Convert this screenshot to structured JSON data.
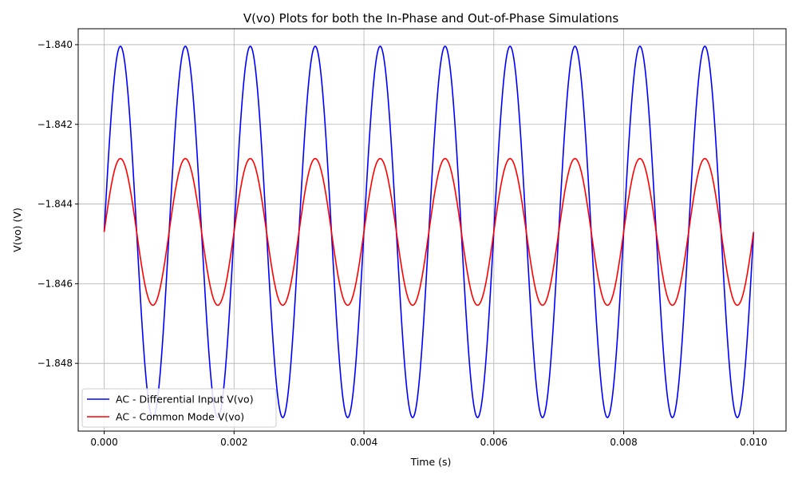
{
  "chart_data": {
    "type": "line",
    "title": "V(vo) Plots for both the In-Phase and Out-of-Phase Simulations",
    "xlabel": "Time (s)",
    "ylabel": "V(vo) (V)",
    "xlim": [
      -0.0004,
      0.0105
    ],
    "ylim": [
      -1.8497,
      -1.8396
    ],
    "xticks": [
      0.0,
      0.002,
      0.004,
      0.006,
      0.008,
      0.01
    ],
    "xtick_labels": [
      "0.000",
      "0.002",
      "0.004",
      "0.006",
      "0.008",
      "0.010"
    ],
    "yticks": [
      -1.848,
      -1.846,
      -1.844,
      -1.842,
      -1.84
    ],
    "ytick_labels": [
      "−1.848",
      "−1.846",
      "−1.844",
      "−1.842",
      "−1.840"
    ],
    "grid": true,
    "legend_position": "lower-left",
    "series": [
      {
        "name": "AC - Differential Input V(vo)",
        "color": "#0000ff",
        "waveform": "sine",
        "offset": -1.8447,
        "amplitude": 0.00466,
        "frequency_hz": 1000,
        "x_start": 0.0,
        "x_end": 0.01,
        "peaks": [
          {
            "x": 0.00025,
            "y": -1.84004
          },
          {
            "x": 0.00125,
            "y": -1.84004
          },
          {
            "x": 0.00225,
            "y": -1.84004
          },
          {
            "x": 0.00325,
            "y": -1.84004
          },
          {
            "x": 0.00425,
            "y": -1.84004
          },
          {
            "x": 0.00525,
            "y": -1.84004
          },
          {
            "x": 0.00625,
            "y": -1.84004
          },
          {
            "x": 0.00725,
            "y": -1.84004
          },
          {
            "x": 0.00825,
            "y": -1.84004
          },
          {
            "x": 0.00925,
            "y": -1.84004
          }
        ],
        "troughs": [
          {
            "x": 0.00075,
            "y": -1.84936
          },
          {
            "x": 0.00175,
            "y": -1.84936
          },
          {
            "x": 0.00275,
            "y": -1.84936
          },
          {
            "x": 0.00375,
            "y": -1.84936
          },
          {
            "x": 0.00475,
            "y": -1.84936
          },
          {
            "x": 0.00575,
            "y": -1.84936
          },
          {
            "x": 0.00675,
            "y": -1.84936
          },
          {
            "x": 0.00775,
            "y": -1.84936
          },
          {
            "x": 0.00875,
            "y": -1.84936
          },
          {
            "x": 0.00975,
            "y": -1.84936
          }
        ]
      },
      {
        "name": "AC - Common Mode V(vo)",
        "color": "#ff0000",
        "waveform": "sine",
        "offset": -1.8447,
        "amplitude": 0.00184,
        "frequency_hz": 1000,
        "x_start": 0.0,
        "x_end": 0.01,
        "peaks": [
          {
            "x": 0.00025,
            "y": -1.84286
          },
          {
            "x": 0.00125,
            "y": -1.84286
          },
          {
            "x": 0.00225,
            "y": -1.84286
          },
          {
            "x": 0.00325,
            "y": -1.84286
          },
          {
            "x": 0.00425,
            "y": -1.84286
          },
          {
            "x": 0.00525,
            "y": -1.84286
          },
          {
            "x": 0.00625,
            "y": -1.84286
          },
          {
            "x": 0.00725,
            "y": -1.84286
          },
          {
            "x": 0.00825,
            "y": -1.84286
          },
          {
            "x": 0.00925,
            "y": -1.84286
          }
        ],
        "troughs": [
          {
            "x": 0.00075,
            "y": -1.84654
          },
          {
            "x": 0.00175,
            "y": -1.84654
          },
          {
            "x": 0.00275,
            "y": -1.84654
          },
          {
            "x": 0.00375,
            "y": -1.84654
          },
          {
            "x": 0.00475,
            "y": -1.84654
          },
          {
            "x": 0.00575,
            "y": -1.84654
          },
          {
            "x": 0.00675,
            "y": -1.84654
          },
          {
            "x": 0.00775,
            "y": -1.84654
          },
          {
            "x": 0.00875,
            "y": -1.84654
          },
          {
            "x": 0.00975,
            "y": -1.84654
          }
        ]
      }
    ]
  }
}
